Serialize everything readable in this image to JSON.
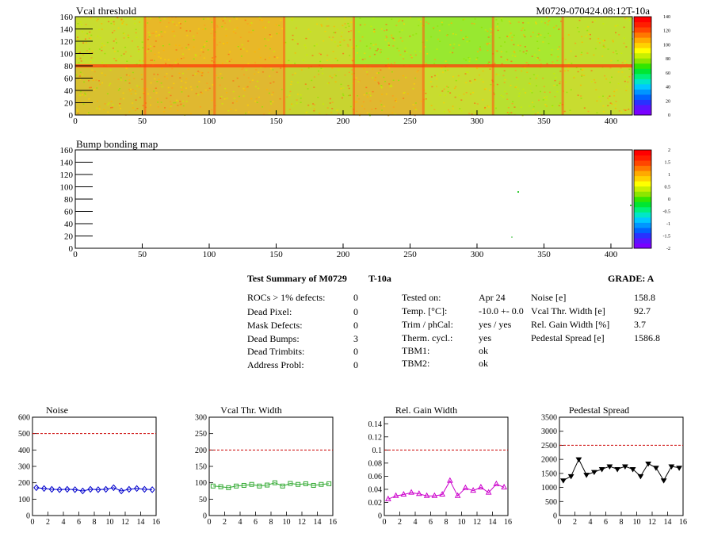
{
  "module_id": "M0729-070424.08:12T-10a",
  "vcal_map": {
    "title": "Vcal threshold",
    "x_ticks": [
      0,
      50,
      100,
      150,
      200,
      250,
      300,
      350,
      400
    ],
    "y_ticks": [
      0,
      20,
      40,
      60,
      80,
      100,
      120,
      140,
      160
    ],
    "palette_ticks": [
      "0",
      "20",
      "40",
      "60",
      "80",
      "100",
      "120",
      "140"
    ]
  },
  "bump_map": {
    "title": "Bump bonding map",
    "x_ticks": [
      0,
      50,
      100,
      150,
      200,
      250,
      300,
      350,
      400
    ],
    "y_ticks": [
      0,
      20,
      40,
      60,
      80,
      100,
      120,
      140,
      160
    ],
    "palette_ticks": [
      "-2",
      "-1.5",
      "-1",
      "-0.5",
      "0",
      "0.5",
      "1",
      "1.5",
      "2"
    ]
  },
  "summary": {
    "header": "Test Summary of M0729",
    "temp_code": "T-10a",
    "grade": "GRADE:  A",
    "col1": [
      {
        "label": "ROCs > 1% defects:",
        "value": "0"
      },
      {
        "label": "Dead Pixel:",
        "value": "0"
      },
      {
        "label": "Mask Defects:",
        "value": "0"
      },
      {
        "label": "Dead Bumps:",
        "value": "3"
      },
      {
        "label": "Dead Trimbits:",
        "value": "0"
      },
      {
        "label": "Address Probl:",
        "value": "0"
      }
    ],
    "col2": [
      {
        "label": "Tested on:",
        "value": "Apr 24"
      },
      {
        "label": "Temp. [°C]:",
        "value": "-10.0 +- 0.0"
      },
      {
        "label": "Trim / phCal:",
        "value": "yes / yes"
      },
      {
        "label": "Therm. cycl.:",
        "value": "yes"
      },
      {
        "label": "TBM1:",
        "value": "ok"
      },
      {
        "label": "TBM2:",
        "value": "ok"
      }
    ],
    "col3": [
      {
        "label": "Noise [e]",
        "value": "158.8"
      },
      {
        "label": "Vcal Thr. Width [e]",
        "value": "92.7"
      },
      {
        "label": "Rel. Gain Width [%]",
        "value": "3.7"
      },
      {
        "label": "Pedestal Spread [e]",
        "value": "1586.8"
      }
    ]
  },
  "chart_data": [
    {
      "type": "line",
      "title": "Noise",
      "color": "#0000cc",
      "marker": "diamond",
      "ylim": [
        0,
        600
      ],
      "xlim": [
        0,
        16
      ],
      "limit": 500,
      "x_ticks": [
        "0",
        "2",
        "4",
        "6",
        "8",
        "10",
        "12",
        "14",
        "16"
      ],
      "y_ticks": [
        "0",
        "100",
        "200",
        "300",
        "400",
        "500",
        "600"
      ],
      "x": [
        0.5,
        1.5,
        2.5,
        3.5,
        4.5,
        5.5,
        6.5,
        7.5,
        8.5,
        9.5,
        10.5,
        11.5,
        12.5,
        13.5,
        14.5,
        15.5
      ],
      "values": [
        170,
        165,
        160,
        158,
        160,
        158,
        150,
        160,
        158,
        160,
        170,
        150,
        160,
        165,
        160,
        158
      ]
    },
    {
      "type": "line",
      "title": "Vcal Thr. Width",
      "color": "#33aa33",
      "marker": "square",
      "ylim": [
        0,
        300
      ],
      "xlim": [
        0,
        16
      ],
      "limit": 200,
      "x_ticks": [
        "0",
        "2",
        "4",
        "6",
        "8",
        "10",
        "12",
        "14",
        "16"
      ],
      "y_ticks": [
        "0",
        "50",
        "100",
        "150",
        "200",
        "250",
        "300"
      ],
      "x": [
        0.5,
        1.5,
        2.5,
        3.5,
        4.5,
        5.5,
        6.5,
        7.5,
        8.5,
        9.5,
        10.5,
        11.5,
        12.5,
        13.5,
        14.5,
        15.5
      ],
      "values": [
        90,
        88,
        85,
        90,
        92,
        95,
        90,
        93,
        100,
        90,
        98,
        95,
        97,
        92,
        95,
        97
      ]
    },
    {
      "type": "line",
      "title": "Rel. Gain Width",
      "color": "#cc00cc",
      "marker": "triangle",
      "ylim": [
        0,
        0.15
      ],
      "xlim": [
        0,
        16
      ],
      "limit": 0.1,
      "x_ticks": [
        "0",
        "2",
        "4",
        "6",
        "8",
        "10",
        "12",
        "14",
        "16"
      ],
      "y_ticks": [
        "0",
        "0.02",
        "0.04",
        "0.06",
        "0.08",
        "0.1",
        "0.12",
        "0.14"
      ],
      "x": [
        0.5,
        1.5,
        2.5,
        3.5,
        4.5,
        5.5,
        6.5,
        7.5,
        8.5,
        9.5,
        10.5,
        11.5,
        12.5,
        13.5,
        14.5,
        15.5
      ],
      "values": [
        0.025,
        0.03,
        0.032,
        0.035,
        0.033,
        0.03,
        0.03,
        0.032,
        0.053,
        0.03,
        0.042,
        0.038,
        0.043,
        0.035,
        0.048,
        0.043
      ]
    },
    {
      "type": "line",
      "title": "Pedestal Spread",
      "color": "#000000",
      "marker": "triangle-down",
      "ylim": [
        0,
        3500
      ],
      "xlim": [
        0,
        16
      ],
      "limit": 2500,
      "x_ticks": [
        "0",
        "2",
        "4",
        "6",
        "8",
        "10",
        "12",
        "14",
        "16"
      ],
      "y_ticks": [
        "0",
        "500",
        "1000",
        "1500",
        "2000",
        "2500",
        "3000",
        "3500"
      ],
      "x": [
        0.5,
        1.5,
        2.5,
        3.5,
        4.5,
        5.5,
        6.5,
        7.5,
        8.5,
        9.5,
        10.5,
        11.5,
        12.5,
        13.5,
        14.5,
        15.5
      ],
      "values": [
        1250,
        1400,
        2000,
        1450,
        1550,
        1650,
        1750,
        1650,
        1750,
        1650,
        1400,
        1850,
        1700,
        1250,
        1750,
        1700
      ]
    }
  ]
}
